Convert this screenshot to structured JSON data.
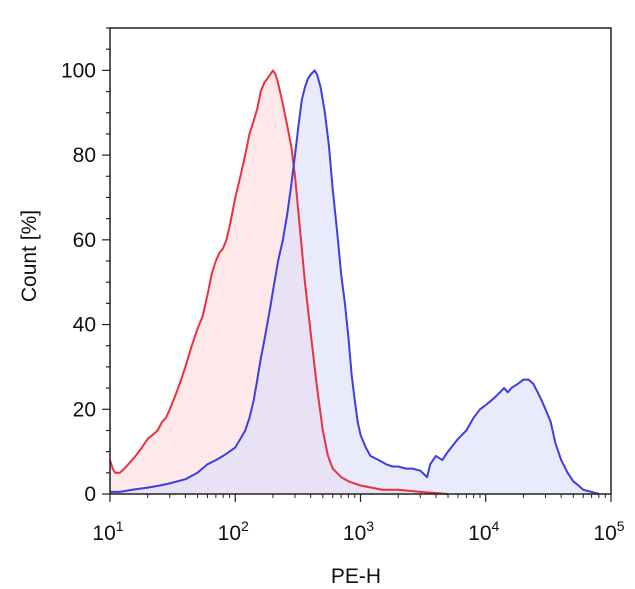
{
  "chart_data": {
    "type": "area",
    "title": "",
    "xlabel": "PE-H",
    "ylabel": "Count [%]",
    "xscale": "log",
    "xlim": [
      10,
      100000
    ],
    "ylim": [
      0,
      110
    ],
    "x_ticks": [
      {
        "value": 10,
        "base": "10",
        "exp": "1"
      },
      {
        "value": 100,
        "base": "10",
        "exp": "2"
      },
      {
        "value": 1000,
        "base": "10",
        "exp": "3"
      },
      {
        "value": 10000,
        "base": "10",
        "exp": "4"
      },
      {
        "value": 100000,
        "base": "10",
        "exp": "5"
      }
    ],
    "y_ticks": [
      0,
      20,
      40,
      60,
      80,
      100
    ],
    "grid": false,
    "series": [
      {
        "color": "#e8333f",
        "fill": "#ffd9dc",
        "points": [
          [
            10,
            8
          ],
          [
            10.5,
            6
          ],
          [
            11,
            5
          ],
          [
            12,
            5
          ],
          [
            13,
            6
          ],
          [
            14,
            7
          ],
          [
            15,
            8
          ],
          [
            16,
            9
          ],
          [
            17,
            10
          ],
          [
            18,
            11
          ],
          [
            20,
            13
          ],
          [
            22,
            14
          ],
          [
            24,
            15
          ],
          [
            26,
            17
          ],
          [
            28,
            18
          ],
          [
            30,
            20
          ],
          [
            33,
            23
          ],
          [
            36,
            26
          ],
          [
            40,
            30
          ],
          [
            45,
            35
          ],
          [
            50,
            39
          ],
          [
            55,
            42
          ],
          [
            60,
            47
          ],
          [
            65,
            52
          ],
          [
            70,
            55
          ],
          [
            75,
            57
          ],
          [
            80,
            58
          ],
          [
            85,
            60
          ],
          [
            90,
            63
          ],
          [
            100,
            70
          ],
          [
            110,
            75
          ],
          [
            120,
            80
          ],
          [
            130,
            85
          ],
          [
            140,
            88
          ],
          [
            150,
            91
          ],
          [
            160,
            95
          ],
          [
            170,
            97
          ],
          [
            180,
            98
          ],
          [
            190,
            99
          ],
          [
            200,
            100
          ],
          [
            210,
            99
          ],
          [
            220,
            97
          ],
          [
            240,
            92
          ],
          [
            260,
            87
          ],
          [
            280,
            82
          ],
          [
            300,
            75
          ],
          [
            330,
            62
          ],
          [
            360,
            50
          ],
          [
            400,
            38
          ],
          [
            450,
            25
          ],
          [
            500,
            15
          ],
          [
            550,
            9
          ],
          [
            600,
            6
          ],
          [
            700,
            4
          ],
          [
            800,
            3
          ],
          [
            1000,
            2
          ],
          [
            1500,
            1
          ],
          [
            2000,
            1
          ],
          [
            3000,
            0.5
          ],
          [
            5000,
            0
          ]
        ]
      },
      {
        "color": "#3b3fe0",
        "fill": "#dadcfa",
        "points": [
          [
            10,
            0.5
          ],
          [
            12,
            0.5
          ],
          [
            15,
            1
          ],
          [
            20,
            1.5
          ],
          [
            25,
            2
          ],
          [
            30,
            2.5
          ],
          [
            40,
            3.5
          ],
          [
            50,
            5
          ],
          [
            60,
            7
          ],
          [
            70,
            8
          ],
          [
            80,
            9
          ],
          [
            90,
            10
          ],
          [
            100,
            11
          ],
          [
            110,
            13
          ],
          [
            120,
            15
          ],
          [
            130,
            18
          ],
          [
            140,
            22
          ],
          [
            150,
            27
          ],
          [
            160,
            32
          ],
          [
            170,
            36
          ],
          [
            180,
            40
          ],
          [
            190,
            44
          ],
          [
            200,
            48
          ],
          [
            220,
            55
          ],
          [
            240,
            60
          ],
          [
            260,
            66
          ],
          [
            280,
            73
          ],
          [
            300,
            80
          ],
          [
            320,
            87
          ],
          [
            340,
            93
          ],
          [
            360,
            96
          ],
          [
            380,
            98
          ],
          [
            400,
            99
          ],
          [
            430,
            100
          ],
          [
            450,
            99
          ],
          [
            480,
            96
          ],
          [
            520,
            90
          ],
          [
            560,
            82
          ],
          [
            600,
            72
          ],
          [
            650,
            62
          ],
          [
            700,
            52
          ],
          [
            750,
            45
          ],
          [
            800,
            37
          ],
          [
            850,
            28
          ],
          [
            900,
            22
          ],
          [
            950,
            17
          ],
          [
            1000,
            14
          ],
          [
            1100,
            11
          ],
          [
            1200,
            9
          ],
          [
            1400,
            8
          ],
          [
            1600,
            7
          ],
          [
            1800,
            6.5
          ],
          [
            2000,
            6.5
          ],
          [
            2300,
            6
          ],
          [
            2600,
            6
          ],
          [
            3000,
            5.5
          ],
          [
            3400,
            4
          ],
          [
            3600,
            7
          ],
          [
            4000,
            9
          ],
          [
            4500,
            8
          ],
          [
            5000,
            10
          ],
          [
            6000,
            13
          ],
          [
            7000,
            15
          ],
          [
            8000,
            18
          ],
          [
            9000,
            20
          ],
          [
            10000,
            21
          ],
          [
            11000,
            22
          ],
          [
            12000,
            23
          ],
          [
            13000,
            24
          ],
          [
            14000,
            25
          ],
          [
            15000,
            24
          ],
          [
            16000,
            25
          ],
          [
            18000,
            26
          ],
          [
            20000,
            27
          ],
          [
            22000,
            27
          ],
          [
            24000,
            26
          ],
          [
            26000,
            24
          ],
          [
            28000,
            22
          ],
          [
            30000,
            20
          ],
          [
            33000,
            17
          ],
          [
            36000,
            12
          ],
          [
            40000,
            8
          ],
          [
            45000,
            5
          ],
          [
            50000,
            3
          ],
          [
            55000,
            2
          ],
          [
            60000,
            1
          ],
          [
            70000,
            0.5
          ],
          [
            80000,
            0
          ]
        ]
      }
    ]
  }
}
